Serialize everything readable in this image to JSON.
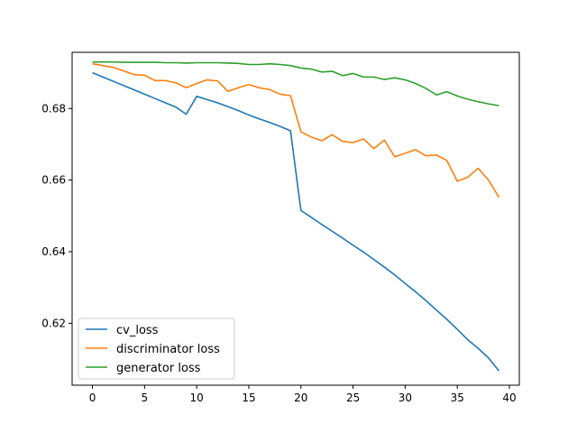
{
  "chart_data": {
    "type": "line",
    "title": "",
    "xlabel": "",
    "ylabel": "",
    "xlim": [
      -1.95,
      40.95
    ],
    "ylim": [
      0.6027,
      0.6957
    ],
    "xticks": [
      0,
      5,
      10,
      15,
      20,
      25,
      30,
      35,
      40
    ],
    "xtick_labels": [
      "0",
      "5",
      "10",
      "15",
      "20",
      "25",
      "30",
      "35",
      "40"
    ],
    "yticks": [
      0.62,
      0.64,
      0.66,
      0.68
    ],
    "ytick_labels": [
      "0.62",
      "0.64",
      "0.66",
      "0.68"
    ],
    "grid": false,
    "legend_position": "lower-left",
    "x": [
      0,
      1,
      2,
      3,
      4,
      5,
      6,
      7,
      8,
      9,
      10,
      11,
      12,
      13,
      14,
      15,
      16,
      17,
      18,
      19,
      20,
      21,
      22,
      23,
      24,
      25,
      26,
      27,
      28,
      29,
      30,
      31,
      32,
      33,
      34,
      35,
      36,
      37,
      38,
      39
    ],
    "series": [
      {
        "name": "cv_loss",
        "color": "#1f77b4",
        "values": [
          0.69,
          0.6888,
          0.6876,
          0.6864,
          0.6852,
          0.684,
          0.6828,
          0.6816,
          0.6804,
          0.6784,
          0.6834,
          0.6825,
          0.6816,
          0.6805,
          0.6794,
          0.6782,
          0.6771,
          0.6761,
          0.675,
          0.6738,
          0.6515,
          0.6496,
          0.6476,
          0.6457,
          0.6438,
          0.6418,
          0.6399,
          0.6378,
          0.6357,
          0.6335,
          0.6311,
          0.6288,
          0.6263,
          0.6237,
          0.6211,
          0.6183,
          0.6154,
          0.613,
          0.6103,
          0.6067
        ]
      },
      {
        "name": "discriminator loss",
        "color": "#ff7f0e",
        "values": [
          0.6925,
          0.692,
          0.6915,
          0.6905,
          0.6895,
          0.6893,
          0.6878,
          0.6878,
          0.6872,
          0.6858,
          0.687,
          0.688,
          0.6877,
          0.6848,
          0.6858,
          0.6867,
          0.6858,
          0.6853,
          0.684,
          0.6836,
          0.6735,
          0.672,
          0.671,
          0.6727,
          0.6708,
          0.6705,
          0.6715,
          0.6688,
          0.6712,
          0.6665,
          0.6675,
          0.6685,
          0.6668,
          0.667,
          0.6655,
          0.6597,
          0.6608,
          0.6633,
          0.66,
          0.6552
        ]
      },
      {
        "name": "generator loss",
        "color": "#2ca02c",
        "values": [
          0.693,
          0.693,
          0.693,
          0.6929,
          0.6929,
          0.6929,
          0.6929,
          0.6928,
          0.6928,
          0.6927,
          0.6928,
          0.6928,
          0.6928,
          0.6927,
          0.6926,
          0.6923,
          0.6923,
          0.6925,
          0.6923,
          0.692,
          0.6913,
          0.691,
          0.6902,
          0.6904,
          0.6892,
          0.6898,
          0.6888,
          0.6888,
          0.6881,
          0.6886,
          0.688,
          0.687,
          0.6856,
          0.6838,
          0.6847,
          0.6835,
          0.6826,
          0.6819,
          0.6813,
          0.6808
        ]
      }
    ]
  }
}
